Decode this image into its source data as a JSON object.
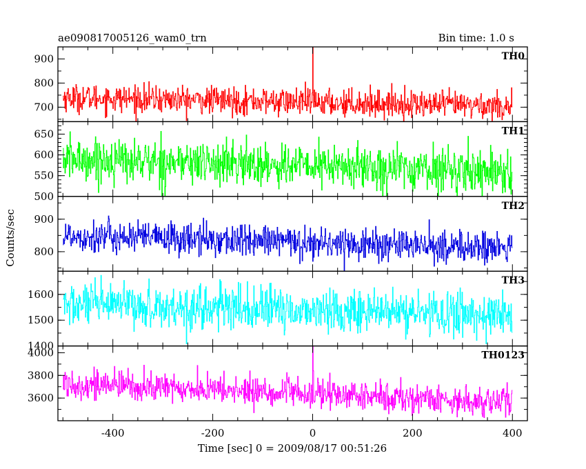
{
  "header": {
    "left": "ae090817005126_wam0_trn",
    "right": "Bin time: 1.0 s"
  },
  "chart_data": {
    "type": "line",
    "title": "ae090817005126_wam0_trn",
    "bin_time": "Bin time: 1.0 s",
    "xlabel": "Time [sec] 0 = 2009/08/17 00:51:26",
    "ylabel": "Counts/sec",
    "xlim": [
      -510,
      430
    ],
    "x_ticks": [
      -400,
      -200,
      0,
      200,
      400
    ],
    "x_range": [
      -500,
      400
    ],
    "bin_width": 1.0,
    "grid": false,
    "panels": [
      {
        "name": "TH0",
        "color": "#ff0000",
        "ylim": [
          640,
          950
        ],
        "ticks": [
          700,
          800,
          900
        ],
        "mean_start": 740,
        "mean_end": 705,
        "noise": 28,
        "spike_t": 0,
        "spike_value": 950
      },
      {
        "name": "TH1",
        "color": "#00ff00",
        "ylim": [
          500,
          680
        ],
        "ticks": [
          500,
          550,
          600,
          650
        ],
        "mean_start": 590,
        "mean_end": 560,
        "noise": 26,
        "spike_t": null,
        "spike_value": null
      },
      {
        "name": "TH2",
        "color": "#0000e0",
        "ylim": [
          740,
          970
        ],
        "ticks": [
          800,
          900
        ],
        "mean_start": 850,
        "mean_end": 810,
        "noise": 25,
        "spike_t": null,
        "spike_value": null
      },
      {
        "name": "TH3",
        "color": "#00ffff",
        "ylim": [
          1400,
          1690
        ],
        "ticks": [
          1400,
          1500,
          1600
        ],
        "mean_start": 1560,
        "mean_end": 1520,
        "noise": 42,
        "spike_t": null,
        "spike_value": null
      },
      {
        "name": "TH0123",
        "color": "#ff00ff",
        "ylim": [
          3400,
          4060
        ],
        "ticks": [
          3600,
          3800,
          4000
        ],
        "mean_start": 3730,
        "mean_end": 3560,
        "noise": 65,
        "spike_t": 0,
        "spike_value": 4060
      }
    ]
  }
}
